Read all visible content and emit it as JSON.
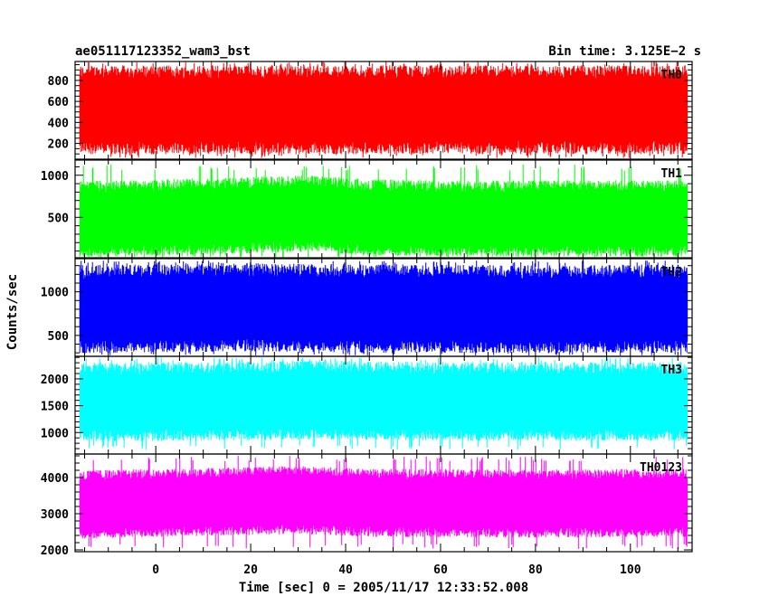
{
  "header": {
    "left_title": "ae051117123352_wam3_bst",
    "right_title": "Bin time: 3.125E−2 s"
  },
  "chart_data": {
    "type": "line",
    "xlabel": "Time [sec] 0 = 2005/11/17 12:33:52.008",
    "ylabel": "Counts/sec",
    "xlim": [
      -17,
      113
    ],
    "x_ticks": [
      0,
      20,
      40,
      60,
      80,
      100
    ],
    "x_minor_step": 5,
    "data_x_range": [
      -16,
      112
    ],
    "bin_time": 0.03125,
    "grid": false,
    "panels": [
      {
        "label": "TH0",
        "color": "#ff0000",
        "ylim": [
          50,
          980
        ],
        "y_ticks": [
          200,
          400,
          600,
          800
        ],
        "minor_step": 50,
        "mean": 520,
        "typical_low": 160,
        "typical_high": 880,
        "min": 60,
        "max": 980,
        "trend": [
          [
            -16,
            520
          ],
          [
            112,
            520
          ]
        ]
      },
      {
        "label": "TH1",
        "color": "#00ff00",
        "ylim": [
          20,
          1180
        ],
        "y_ticks": [
          500,
          1000
        ],
        "minor_step": 100,
        "mean": 480,
        "typical_low": 110,
        "typical_high": 880,
        "min": 20,
        "max": 1130,
        "trend": [
          [
            -16,
            460
          ],
          [
            0,
            480
          ],
          [
            15,
            500
          ],
          [
            32,
            530
          ],
          [
            45,
            480
          ],
          [
            60,
            470
          ],
          [
            80,
            470
          ],
          [
            112,
            470
          ]
        ]
      },
      {
        "label": "TH2",
        "color": "#0000ff",
        "ylim": [
          260,
          1380
        ],
        "y_ticks": [
          500,
          1000
        ],
        "minor_step": 100,
        "mean": 800,
        "typical_low": 380,
        "typical_high": 1240,
        "min": 270,
        "max": 1360,
        "trend": [
          [
            -16,
            790
          ],
          [
            20,
            810
          ],
          [
            40,
            800
          ],
          [
            80,
            790
          ],
          [
            112,
            795
          ]
        ]
      },
      {
        "label": "TH3",
        "color": "#00ffff",
        "ylim": [
          600,
          2420
        ],
        "y_ticks": [
          1000,
          1500,
          2000
        ],
        "minor_step": 100,
        "mean": 1550,
        "typical_low": 950,
        "typical_high": 2200,
        "min": 680,
        "max": 2400,
        "trend": [
          [
            -16,
            1540
          ],
          [
            20,
            1560
          ],
          [
            35,
            1580
          ],
          [
            60,
            1550
          ],
          [
            112,
            1550
          ]
        ]
      },
      {
        "label": "TH0123",
        "color": "#ff00ff",
        "ylim": [
          1950,
          4650
        ],
        "y_ticks": [
          2000,
          3000,
          4000
        ],
        "minor_step": 200,
        "mean": 3300,
        "typical_low": 2500,
        "typical_high": 4100,
        "min": 2020,
        "max": 4600,
        "trend": [
          [
            -16,
            3250
          ],
          [
            0,
            3300
          ],
          [
            30,
            3380
          ],
          [
            45,
            3300
          ],
          [
            80,
            3280
          ],
          [
            112,
            3300
          ]
        ]
      }
    ]
  }
}
